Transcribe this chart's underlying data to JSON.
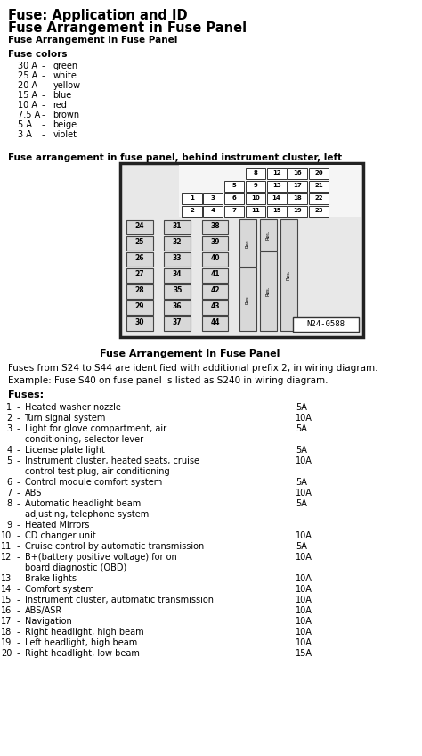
{
  "title1": "Fuse: Application and ID",
  "title2": "Fuse Arrangement in Fuse Panel",
  "subtitle": "Fuse Arrangement in Fuse Panel",
  "fuse_colors_header": "Fuse colors",
  "fuse_colors": [
    [
      "30 A",
      "-",
      "green"
    ],
    [
      "25 A",
      "-",
      "white"
    ],
    [
      "20 A",
      "-",
      "yellow"
    ],
    [
      "15 A",
      "-",
      "blue"
    ],
    [
      "10 A",
      "-",
      "red"
    ],
    [
      "7.5 A",
      "-",
      "brown"
    ],
    [
      "5 A",
      "-",
      "beige"
    ],
    [
      "3 A",
      "-",
      "violet"
    ]
  ],
  "diagram_section_label": "Fuse arrangement in fuse panel, behind instrument cluster, left",
  "diagram_caption": "Fuse Arrangement In Fuse Panel",
  "diagram_note1": "Fuses from S24 to S44 are identified with additional prefix 2, in wiring diagram.",
  "diagram_note2": "Example: Fuse S40 on fuse panel is listed as S240 in wiring diagram.",
  "fuses_header": "Fuses:",
  "fuses": [
    [
      1,
      "Heated washer nozzle",
      "5A",
      false
    ],
    [
      2,
      "Turn signal system",
      "10A",
      false
    ],
    [
      3,
      "Light for glove compartment, air",
      "5A",
      true
    ],
    [
      4,
      "License plate light",
      "5A",
      false
    ],
    [
      5,
      "Instrument cluster, heated seats, cruise",
      "10A",
      true
    ],
    [
      6,
      "Control module comfort system",
      "5A",
      false
    ],
    [
      7,
      "ABS",
      "10A",
      false
    ],
    [
      8,
      "Automatic headlight beam",
      "5A",
      true
    ],
    [
      9,
      "Heated Mirrors",
      "",
      false
    ],
    [
      10,
      "CD changer unit",
      "10A",
      false
    ],
    [
      11,
      "Cruise control by automatic transmission",
      "5A",
      false
    ],
    [
      12,
      "B+(battery positive voltage) for on",
      "10A",
      true
    ],
    [
      13,
      "Brake lights",
      "10A",
      false
    ],
    [
      14,
      "Comfort system",
      "10A",
      false
    ],
    [
      15,
      "Instrument cluster, automatic transmission",
      "10A",
      false
    ],
    [
      16,
      "ABS/ASR",
      "10A",
      false
    ],
    [
      17,
      "Navigation",
      "10A",
      false
    ],
    [
      18,
      "Right headlight, high beam",
      "10A",
      false
    ],
    [
      19,
      "Left headlight, high beam",
      "10A",
      false
    ],
    [
      20,
      "Right headlight, low beam",
      "15A",
      false
    ]
  ],
  "fuses_cont": [
    "    conditioning, selector lever",
    "    control test plug, air conditioning",
    "    adjusting, telephone system",
    "    board diagnostic (OBD)"
  ],
  "bg_color": "#ffffff",
  "text_color": "#000000"
}
